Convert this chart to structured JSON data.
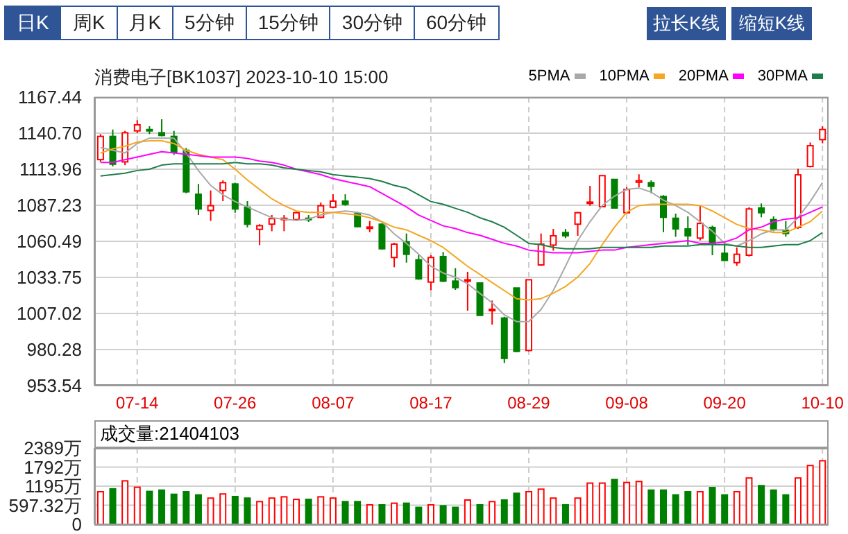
{
  "chart_data": [
    {
      "type": "candlestick",
      "title": "消费电子[BK1037] 2023-10-10 15:00",
      "annotations": [
        "日K",
        "周K",
        "月K",
        "5分钟",
        "15分钟",
        "30分钟",
        "60分钟",
        "拉长K线",
        "缩短K线"
      ],
      "categories": [
        null,
        null,
        null,
        "07-14",
        null,
        null,
        null,
        null,
        null,
        null,
        null,
        "07-26",
        null,
        null,
        null,
        null,
        null,
        null,
        null,
        "08-07",
        null,
        null,
        null,
        null,
        null,
        null,
        null,
        "08-17",
        null,
        null,
        null,
        null,
        null,
        null,
        null,
        "08-29",
        null,
        null,
        null,
        null,
        null,
        null,
        null,
        "09-08",
        null,
        null,
        null,
        null,
        null,
        null,
        null,
        "09-20",
        null,
        null,
        null,
        null,
        null,
        null,
        null,
        "10-10"
      ],
      "ohlc": [
        [
          1121.1,
          1140.0,
          1119.4,
          1138.3
        ],
        [
          1138.3,
          1143.4,
          1116.0,
          1117.7
        ],
        [
          1119.4,
          1142.4,
          1117.0,
          1141.0
        ],
        [
          1142.4,
          1150.3,
          1140.7,
          1146.9
        ],
        [
          1143.4,
          1145.8,
          1140.0,
          1142.7
        ],
        [
          1141.0,
          1151.0,
          1138.3,
          1139.0
        ],
        [
          1138.3,
          1142.4,
          1124.6,
          1126.3
        ],
        [
          1128.0,
          1129.7,
          1096.1,
          1097.2
        ],
        [
          1095.4,
          1103.0,
          1080.0,
          1084.5
        ],
        [
          1083.4,
          1098.2,
          1075.6,
          1086.9
        ],
        [
          1098.2,
          1105.7,
          1090.3,
          1104.0
        ],
        [
          1103.0,
          1104.0,
          1081.7,
          1084.5
        ],
        [
          1085.8,
          1090.3,
          1070.8,
          1073.2
        ],
        [
          1069.4,
          1073.2,
          1057.7,
          1072.1
        ],
        [
          1073.2,
          1080.0,
          1068.0,
          1077.3
        ],
        [
          1076.9,
          1080.0,
          1068.0,
          1077.6
        ],
        [
          1076.6,
          1082.4,
          1075.6,
          1081.7
        ],
        [
          1077.6,
          1080.0,
          1074.9,
          1076.6
        ],
        [
          1078.3,
          1089.3,
          1077.6,
          1086.9
        ],
        [
          1085.8,
          1095.4,
          1085.2,
          1090.3
        ],
        [
          1090.3,
          1095.4,
          1086.9,
          1087.9
        ],
        [
          1081.0,
          1082.4,
          1070.8,
          1071.4
        ],
        [
          1070.4,
          1075.6,
          1067.3,
          1071.1
        ],
        [
          1073.2,
          1073.8,
          1054.3,
          1055.0
        ],
        [
          1048.5,
          1059.4,
          1041.3,
          1058.4
        ],
        [
          1060.1,
          1066.3,
          1044.7,
          1050.9
        ],
        [
          1046.8,
          1050.2,
          1032.0,
          1032.7
        ],
        [
          1030.3,
          1050.2,
          1024.1,
          1048.5
        ],
        [
          1049.2,
          1052.6,
          1030.3,
          1031.0
        ],
        [
          1031.0,
          1040.6,
          1024.5,
          1026.2
        ],
        [
          1031.3,
          1037.9,
          1009.1,
          1032.0
        ],
        [
          1029.6,
          1029.6,
          1005.6,
          1005.6
        ],
        [
          1009.4,
          1016.6,
          998.8,
          1010.1
        ],
        [
          1003.6,
          1004.6,
          970.3,
          973.7
        ],
        [
          1025.9,
          1025.9,
          978.2,
          978.9
        ],
        [
          979.6,
          1032.0,
          978.9,
          1032.0
        ],
        [
          1043.0,
          1066.3,
          1042.3,
          1058.4
        ],
        [
          1057.7,
          1069.7,
          1053.6,
          1064.6
        ],
        [
          1067.0,
          1069.7,
          1062.9,
          1064.6
        ],
        [
          1073.2,
          1082.4,
          1064.6,
          1081.7
        ],
        [
          1088.6,
          1101.6,
          1086.9,
          1089.6
        ],
        [
          1086.2,
          1109.2,
          1085.8,
          1109.2
        ],
        [
          1106.4,
          1106.4,
          1085.2,
          1085.2
        ],
        [
          1081.7,
          1100.6,
          1081.0,
          1098.9
        ],
        [
          1104.3,
          1110.2,
          1100.6,
          1105.4
        ],
        [
          1104.0,
          1105.7,
          1096.1,
          1101.3
        ],
        [
          1093.7,
          1094.8,
          1067.3,
          1078.3
        ],
        [
          1077.6,
          1081.0,
          1063.9,
          1069.7
        ],
        [
          1069.7,
          1079.0,
          1057.7,
          1064.6
        ],
        [
          1062.9,
          1086.9,
          1061.2,
          1073.8
        ],
        [
          1070.8,
          1072.1,
          1050.2,
          1058.4
        ],
        [
          1051.6,
          1060.1,
          1045.7,
          1046.4
        ],
        [
          1044.7,
          1056.0,
          1042.3,
          1050.9
        ],
        [
          1050.2,
          1085.8,
          1049.2,
          1084.5
        ],
        [
          1085.2,
          1088.6,
          1078.3,
          1081.7
        ],
        [
          1076.6,
          1079.0,
          1068.0,
          1069.7
        ],
        [
          1068.7,
          1075.6,
          1063.9,
          1066.3
        ],
        [
          1070.8,
          1114.3,
          1069.7,
          1109.8
        ],
        [
          1116.0,
          1133.8,
          1115.3,
          1131.4
        ],
        [
          1135.9,
          1145.8,
          1133.2,
          1143.4
        ]
      ],
      "colors": [
        "#ff0000",
        "#008000",
        "#ff0000",
        "#ff0000",
        "#008000",
        "#008000",
        "#008000",
        "#008000",
        "#008000",
        "#ff0000",
        "#ff0000",
        "#008000",
        "#008000",
        "#ff0000",
        "#ff0000",
        "#ff0000",
        "#ff0000",
        "#008000",
        "#ff0000",
        "#ff0000",
        "#008000",
        "#008000",
        "#ff0000",
        "#008000",
        "#ff0000",
        "#008000",
        "#008000",
        "#ff0000",
        "#008000",
        "#008000",
        "#ff0000",
        "#008000",
        "#ff0000",
        "#008000",
        "#008000",
        "#ff0000",
        "#ff0000",
        "#ff0000",
        "#008000",
        "#ff0000",
        "#ff0000",
        "#ff0000",
        "#008000",
        "#ff0000",
        "#ff0000",
        "#008000",
        "#008000",
        "#008000",
        "#008000",
        "#ff0000",
        "#008000",
        "#008000",
        "#ff0000",
        "#ff0000",
        "#008000",
        "#008000",
        "#008000",
        "#ff0000",
        "#ff0000",
        "#ff0000"
      ],
      "series": [
        {
          "name": "5PMA",
          "type": "line",
          "color": "#a9a9a9",
          "values": [
            1130,
            1128,
            1126,
            1133,
            1137,
            1137,
            1137,
            1126,
            1113,
            1102,
            1095,
            1090,
            1086,
            1082,
            1078,
            1077,
            1076,
            1077,
            1080,
            1082,
            1083,
            1082,
            1080,
            1075,
            1066,
            1059,
            1051,
            1042,
            1037,
            1034,
            1029,
            1022,
            1015,
            1006,
            1001,
            1001,
            1010,
            1024,
            1042,
            1061,
            1075,
            1087,
            1094,
            1099,
            1100,
            1097,
            1091,
            1087,
            1082,
            1075,
            1068,
            1059,
            1057,
            1061,
            1066,
            1069,
            1069,
            1078,
            1090,
            1104
          ]
        },
        {
          "name": "10PMA",
          "type": "line",
          "color": "#f5a623",
          "values": [
            1126,
            1129,
            1131,
            1134,
            1135,
            1135,
            1133,
            1128,
            1125,
            1123,
            1121,
            1114,
            1106,
            1099,
            1092,
            1087,
            1083,
            1082,
            1082,
            1082,
            1081,
            1080,
            1078,
            1075,
            1071,
            1069,
            1065,
            1061,
            1056,
            1049,
            1042,
            1036,
            1030,
            1024,
            1018,
            1017,
            1018,
            1022,
            1027,
            1034,
            1044,
            1058,
            1071,
            1082,
            1087,
            1088,
            1088,
            1088,
            1088,
            1087,
            1083,
            1078,
            1073,
            1070,
            1069,
            1067,
            1067,
            1071,
            1075,
            1083
          ]
        },
        {
          "name": "20PMA",
          "type": "line",
          "color": "#ff00ff",
          "values": [
            1119,
            1119,
            1121,
            1123,
            1125,
            1127,
            1126,
            1125,
            1124,
            1123,
            1123,
            1123,
            1122,
            1120,
            1119,
            1117,
            1114,
            1112,
            1110,
            1107,
            1105,
            1103,
            1101,
            1096,
            1091,
            1086,
            1080,
            1076,
            1072,
            1070,
            1067,
            1065,
            1062,
            1059,
            1057,
            1054,
            1053,
            1052,
            1052,
            1052,
            1053,
            1054,
            1054,
            1056,
            1057,
            1058,
            1059,
            1060,
            1061,
            1059,
            1059,
            1060,
            1063,
            1069,
            1071,
            1075,
            1077,
            1078,
            1082,
            1086
          ]
        },
        {
          "name": "30PMA",
          "type": "line",
          "color": "#1e7e4a",
          "values": [
            1109,
            1110,
            1111,
            1113,
            1114,
            1117,
            1118,
            1118,
            1118,
            1118,
            1118,
            1119,
            1118,
            1118,
            1117,
            1115,
            1114,
            1113,
            1112,
            1110,
            1109,
            1108,
            1107,
            1105,
            1102,
            1100,
            1095,
            1090,
            1088,
            1085,
            1082,
            1078,
            1075,
            1071,
            1065,
            1059,
            1058,
            1056,
            1055,
            1055,
            1055,
            1056,
            1056,
            1056,
            1056,
            1056,
            1057,
            1057,
            1057,
            1058,
            1058,
            1058,
            1057,
            1056,
            1056,
            1057,
            1058,
            1058,
            1061,
            1067
          ]
        }
      ],
      "ylim": [
        953.54,
        1167.44
      ],
      "yticks": [
        953.54,
        980.28,
        1007.02,
        1033.75,
        1060.49,
        1087.23,
        1113.96,
        {
          "value": 1140.7,
          "label": "1140.70"
        },
        1167.44
      ],
      "grid": true,
      "legend": "top right"
    },
    {
      "type": "bar",
      "title": "成交量:21404103",
      "categories": [
        null,
        null,
        null,
        null,
        null,
        null,
        null,
        null,
        null,
        null,
        null,
        null,
        null,
        null,
        null,
        null,
        null,
        null,
        null,
        null,
        null,
        null,
        null,
        null,
        null,
        null,
        null,
        null,
        null,
        null,
        null,
        null,
        null,
        null,
        null,
        null,
        null,
        null,
        null,
        null,
        null,
        null,
        null,
        null,
        null,
        null,
        null,
        null,
        null,
        null,
        null,
        null,
        null,
        null,
        null,
        null,
        null,
        null,
        null,
        null
      ],
      "values": [
        1020,
        1110,
        1360,
        1160,
        1030,
        1070,
        940,
        1020,
        920,
        820,
        950,
        870,
        820,
        710,
        820,
        860,
        780,
        780,
        860,
        820,
        710,
        710,
        610,
        610,
        660,
        660,
        530,
        610,
        580,
        530,
        760,
        610,
        710,
        760,
        970,
        1020,
        1100,
        820,
        610,
        820,
        1290,
        1290,
        1400,
        1310,
        1340,
        1070,
        1070,
        920,
        1020,
        1020,
        1150,
        920,
        1020,
        1450,
        1210,
        1070,
        920,
        1450,
        1840,
        1990
      ],
      "colors": [
        "#ff0000",
        "#008000",
        "#ff0000",
        "#ff0000",
        "#008000",
        "#008000",
        "#008000",
        "#008000",
        "#008000",
        "#ff0000",
        "#ff0000",
        "#008000",
        "#008000",
        "#ff0000",
        "#ff0000",
        "#ff0000",
        "#ff0000",
        "#008000",
        "#ff0000",
        "#ff0000",
        "#008000",
        "#008000",
        "#ff0000",
        "#008000",
        "#ff0000",
        "#008000",
        "#008000",
        "#ff0000",
        "#008000",
        "#008000",
        "#ff0000",
        "#008000",
        "#ff0000",
        "#008000",
        "#008000",
        "#ff0000",
        "#ff0000",
        "#ff0000",
        "#008000",
        "#ff0000",
        "#ff0000",
        "#ff0000",
        "#008000",
        "#ff0000",
        "#ff0000",
        "#008000",
        "#008000",
        "#008000",
        "#008000",
        "#ff0000",
        "#008000",
        "#008000",
        "#ff0000",
        "#ff0000",
        "#008000",
        "#008000",
        "#008000",
        "#ff0000",
        "#ff0000",
        "#ff0000"
      ],
      "ylim": [
        0,
        2389
      ],
      "yticks": [
        0,
        {
          "value": 597.32,
          "label": "597.32万"
        },
        {
          "value": 1195,
          "label": "1195万"
        },
        {
          "value": 1792,
          "label": "1792万"
        },
        {
          "value": 2389,
          "label": "2389万"
        }
      ],
      "grid": true,
      "tick_labels": "y"
    }
  ]
}
